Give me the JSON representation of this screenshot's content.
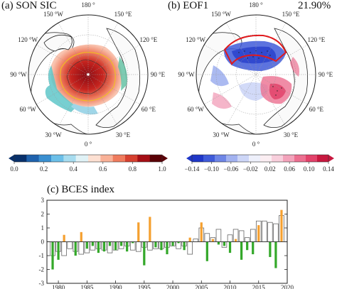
{
  "panel_a": {
    "title": "(a) SON SIC",
    "lon_labels": [
      "180 °",
      "150 °E",
      "120 °E",
      "90 °E",
      "60 °E",
      "30 °E",
      "0 °",
      "30 °W",
      "60 °W",
      "90 °W",
      "120 °W",
      "150 °W"
    ],
    "colorbar_ticks": [
      "0.0",
      "0.2",
      "0.4",
      "0.6",
      "0.8",
      "1.0"
    ],
    "colorbar_colors": [
      "#08306b",
      "#1f62ad",
      "#3a8fd0",
      "#6bbfe8",
      "#a7dcef",
      "#e0f2f6",
      "#fde0d2",
      "#f9b197",
      "#ef7b5d",
      "#d6402f",
      "#a50f15",
      "#5a0006"
    ]
  },
  "panel_b": {
    "title": "(b) EOF1",
    "variance": "21.90%",
    "lon_labels": [
      "180 °",
      "150 °E",
      "120 °E",
      "90 °E",
      "60 °E",
      "30 °E",
      "0 °",
      "30 °W",
      "60 °W",
      "90 °W",
      "120 °W",
      "150 °W"
    ],
    "colorbar_ticks": [
      "−0.14",
      "−0.10",
      "−0.06",
      "−0.02",
      "0.02",
      "0.06",
      "0.10",
      "0.14"
    ],
    "colorbar_colors": [
      "#1f37c8",
      "#3f5bd9",
      "#6e86e6",
      "#a2b2f0",
      "#cdd6f7",
      "#eef0fb",
      "#fbeef2",
      "#f8cfdc",
      "#f3a3bb",
      "#ec6f90",
      "#e2426a",
      "#c8183f"
    ]
  },
  "panel_c": {
    "title": "(c) BCES index",
    "colors": {
      "positive": "#f5a030",
      "negative": "#34a82a",
      "index_edge": "#666666"
    }
  },
  "chart_data": [
    {
      "type": "bar",
      "title": "(c) BCES index",
      "xlabel": "",
      "ylabel": "",
      "xlim": [
        1978,
        2020
      ],
      "ylim": [
        -3,
        3
      ],
      "xticks": [
        1980,
        1985,
        1990,
        1995,
        2000,
        2005,
        2010,
        2015,
        2020
      ],
      "yticks": [
        -3,
        -2,
        -1,
        0,
        1,
        2,
        3
      ],
      "x": [
        1979,
        1980,
        1981,
        1982,
        1983,
        1984,
        1985,
        1986,
        1987,
        1988,
        1989,
        1990,
        1991,
        1992,
        1993,
        1994,
        1995,
        1996,
        1997,
        1998,
        1999,
        2000,
        2001,
        2002,
        2003,
        2004,
        2005,
        2006,
        2007,
        2008,
        2009,
        2010,
        2011,
        2012,
        2013,
        2014,
        2015,
        2016,
        2017,
        2018,
        2019
      ],
      "series": [
        {
          "values": [
            -1.0,
            -0.7,
            -1.0,
            -0.5,
            -0.7,
            -0.9,
            -0.8,
            -0.6,
            -0.5,
            -0.6,
            -0.8,
            -0.6,
            -0.5,
            -0.3,
            -0.6,
            -0.7,
            -0.4,
            -0.6,
            -0.5,
            -0.5,
            -0.4,
            -0.3,
            -0.5,
            -0.3,
            -0.9,
            0.2,
            1.0,
            0.6,
            0.3,
            0.9,
            -0.4,
            0.5,
            0.9,
            0.8,
            0.3,
            0.9,
            1.5,
            1.5,
            1.4,
            1.3,
            1.9
          ]
        },
        {
          "values": [
            -2.0,
            -1.3,
            0.5,
            0.0,
            -1.0,
            0.7,
            -0.5,
            -0.3,
            -0.8,
            -0.7,
            -0.3,
            -0.6,
            -0.3,
            -0.7,
            -0.1,
            1.4,
            -1.7,
            1.8,
            -0.4,
            -0.6,
            -0.9,
            -0.3,
            -0.1,
            -0.6,
            0.3,
            0.0,
            1.4,
            -1.4,
            0.2,
            -0.2,
            -0.3,
            -0.8,
            0.2,
            -1.3,
            -0.6,
            -0.9,
            1.2,
            0.0,
            -1.1,
            -1.9,
            2.3
          ]
        }
      ]
    }
  ]
}
